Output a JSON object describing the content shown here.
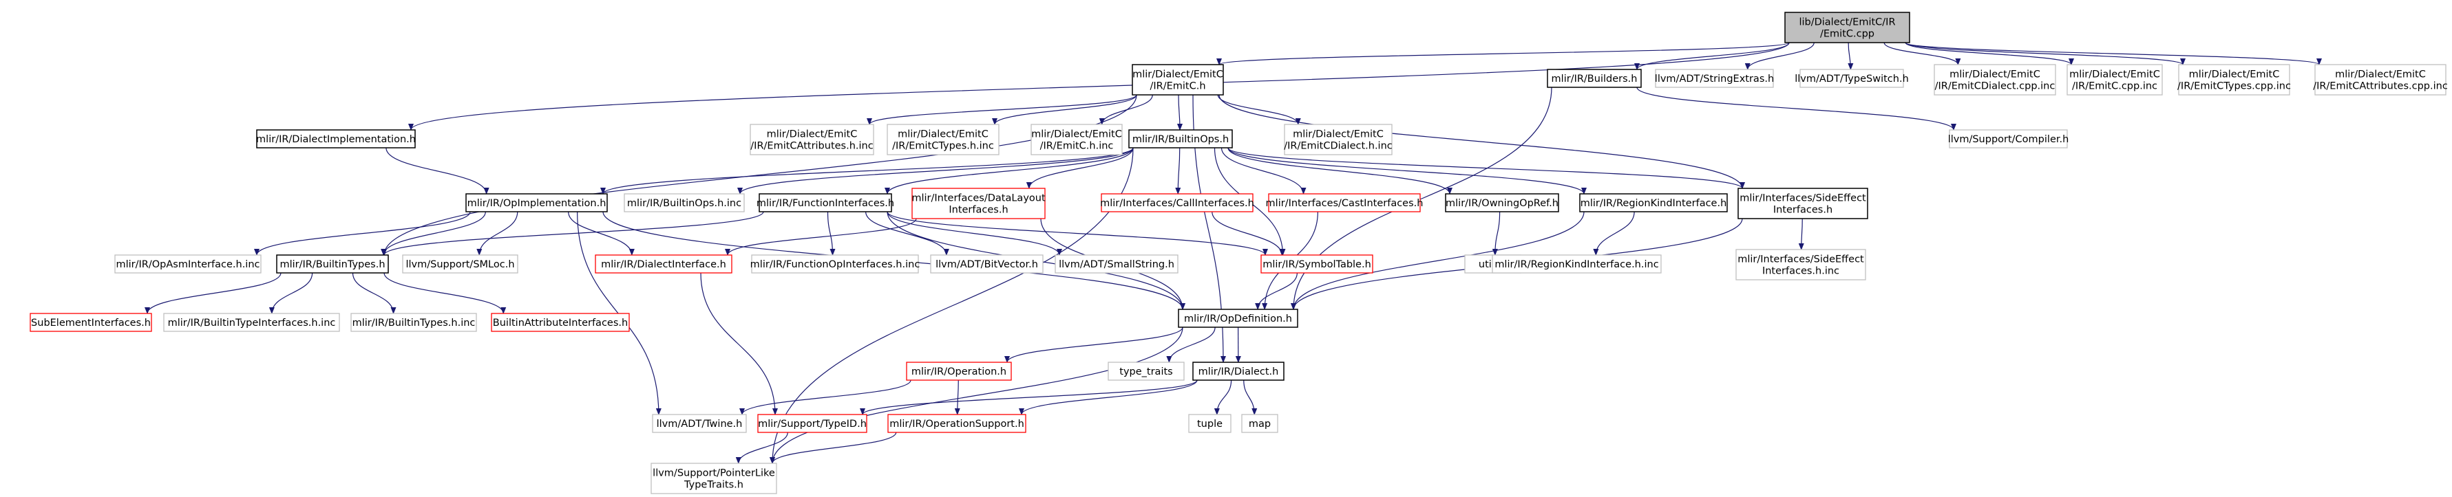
{
  "title": "lib/Dialect/EmitC/IR/EmitC.cpp",
  "colors": {
    "edge": "#191970",
    "root_fill": "#bfbfbf",
    "documented_border": "#000000",
    "undocumented_border": "#bfbfbf",
    "truncated_border": "#ff0000",
    "label_text": "#000000"
  },
  "nodes": [
    {
      "id": "root",
      "lines": [
        "lib/Dialect/EmitC/IR",
        "/EmitC.cpp"
      ],
      "style": "root"
    },
    {
      "id": "emitc_h",
      "lines": [
        "mlir/Dialect/EmitC",
        "/IR/EmitC.h"
      ],
      "style": "documented"
    },
    {
      "id": "builders_h",
      "lines": [
        "mlir/IR/Builders.h"
      ],
      "style": "documented"
    },
    {
      "id": "stringextras_h",
      "lines": [
        "llvm/ADT/StringExtras.h"
      ],
      "style": "undocumented"
    },
    {
      "id": "typeswitch_h",
      "lines": [
        "llvm/ADT/TypeSwitch.h"
      ],
      "style": "undocumented"
    },
    {
      "id": "emitc_dialect_cpp_inc",
      "lines": [
        "mlir/Dialect/EmitC",
        "/IR/EmitCDialect.cpp.inc"
      ],
      "style": "undocumented"
    },
    {
      "id": "emitc_cpp_inc",
      "lines": [
        "mlir/Dialect/EmitC",
        "/IR/EmitC.cpp.inc"
      ],
      "style": "undocumented"
    },
    {
      "id": "emitc_types_cpp_inc",
      "lines": [
        "mlir/Dialect/EmitC",
        "/IR/EmitCTypes.cpp.inc"
      ],
      "style": "undocumented"
    },
    {
      "id": "emitc_attrs_cpp_inc",
      "lines": [
        "mlir/Dialect/EmitC",
        "/IR/EmitCAttributes.cpp.inc"
      ],
      "style": "undocumented"
    },
    {
      "id": "dialect_impl_h",
      "lines": [
        "mlir/IR/DialectImplementation.h"
      ],
      "style": "documented"
    },
    {
      "id": "emitc_attrs_h_inc",
      "lines": [
        "mlir/Dialect/EmitC",
        "/IR/EmitCAttributes.h.inc"
      ],
      "style": "undocumented"
    },
    {
      "id": "emitc_types_h_inc",
      "lines": [
        "mlir/Dialect/EmitC",
        "/IR/EmitCTypes.h.inc"
      ],
      "style": "undocumented"
    },
    {
      "id": "emitc_h_inc",
      "lines": [
        "mlir/Dialect/EmitC",
        "/IR/EmitC.h.inc"
      ],
      "style": "undocumented"
    },
    {
      "id": "builtinops_h",
      "lines": [
        "mlir/IR/BuiltinOps.h"
      ],
      "style": "documented"
    },
    {
      "id": "emitc_dialect_h_inc",
      "lines": [
        "mlir/Dialect/EmitC",
        "/IR/EmitCDialect.h.inc"
      ],
      "style": "undocumented"
    },
    {
      "id": "compiler_h",
      "lines": [
        "llvm/Support/Compiler.h"
      ],
      "style": "undocumented"
    },
    {
      "id": "opimpl_h",
      "lines": [
        "mlir/IR/OpImplementation.h"
      ],
      "style": "documented"
    },
    {
      "id": "builtinops_h_inc",
      "lines": [
        "mlir/IR/BuiltinOps.h.inc"
      ],
      "style": "undocumented"
    },
    {
      "id": "funcinterfaces_h",
      "lines": [
        "mlir/IR/FunctionInterfaces.h"
      ],
      "style": "documented"
    },
    {
      "id": "datalayout_h",
      "lines": [
        "mlir/Interfaces/DataLayout",
        "Interfaces.h"
      ],
      "style": "truncated"
    },
    {
      "id": "callinterfaces_h",
      "lines": [
        "mlir/Interfaces/CallInterfaces.h"
      ],
      "style": "truncated"
    },
    {
      "id": "castinterfaces_h",
      "lines": [
        "mlir/Interfaces/CastInterfaces.h"
      ],
      "style": "truncated"
    },
    {
      "id": "owningopref_h",
      "lines": [
        "mlir/IR/OwningOpRef.h"
      ],
      "style": "documented"
    },
    {
      "id": "regionkind_h",
      "lines": [
        "mlir/IR/RegionKindInterface.h"
      ],
      "style": "documented"
    },
    {
      "id": "sideeffect_h",
      "lines": [
        "mlir/Interfaces/SideEffect",
        "Interfaces.h"
      ],
      "style": "documented"
    },
    {
      "id": "opasminterface_h_inc",
      "lines": [
        "mlir/IR/OpAsmInterface.h.inc"
      ],
      "style": "undocumented"
    },
    {
      "id": "builtintypes_h",
      "lines": [
        "mlir/IR/BuiltinTypes.h"
      ],
      "style": "documented"
    },
    {
      "id": "smloc_h",
      "lines": [
        "llvm/Support/SMLoc.h"
      ],
      "style": "undocumented"
    },
    {
      "id": "dialectinterface_h",
      "lines": [
        "mlir/IR/DialectInterface.h"
      ],
      "style": "truncated"
    },
    {
      "id": "funcopinterfaces_h_inc",
      "lines": [
        "mlir/IR/FunctionOpInterfaces.h.inc"
      ],
      "style": "undocumented"
    },
    {
      "id": "bitvector_h",
      "lines": [
        "llvm/ADT/BitVector.h"
      ],
      "style": "undocumented"
    },
    {
      "id": "smallstring_h",
      "lines": [
        "llvm/ADT/SmallString.h"
      ],
      "style": "undocumented"
    },
    {
      "id": "symboltable_h",
      "lines": [
        "mlir/IR/SymbolTable.h"
      ],
      "style": "truncated"
    },
    {
      "id": "utility",
      "lines": [
        "utility"
      ],
      "style": "undocumented"
    },
    {
      "id": "regionkind_h_inc",
      "lines": [
        "mlir/IR/RegionKindInterface.h.inc"
      ],
      "style": "undocumented"
    },
    {
      "id": "sideeffect_h_inc",
      "lines": [
        "mlir/Interfaces/SideEffect",
        "Interfaces.h.inc"
      ],
      "style": "undocumented"
    },
    {
      "id": "subelement_h",
      "lines": [
        "SubElementInterfaces.h"
      ],
      "style": "truncated"
    },
    {
      "id": "builtintypeinterfaces_h_inc",
      "lines": [
        "mlir/IR/BuiltinTypeInterfaces.h.inc"
      ],
      "style": "undocumented"
    },
    {
      "id": "builtintypes_h_inc",
      "lines": [
        "mlir/IR/BuiltinTypes.h.inc"
      ],
      "style": "undocumented"
    },
    {
      "id": "builtinattrinterfaces_h",
      "lines": [
        "BuiltinAttributeInterfaces.h"
      ],
      "style": "truncated"
    },
    {
      "id": "opdefinition_h",
      "lines": [
        "mlir/IR/OpDefinition.h"
      ],
      "style": "documented"
    },
    {
      "id": "type_traits",
      "lines": [
        "type_traits"
      ],
      "style": "undocumented"
    },
    {
      "id": "operation_h",
      "lines": [
        "mlir/IR/Operation.h"
      ],
      "style": "truncated"
    },
    {
      "id": "dialect_h",
      "lines": [
        "mlir/IR/Dialect.h"
      ],
      "style": "documented"
    },
    {
      "id": "twine_h",
      "lines": [
        "llvm/ADT/Twine.h"
      ],
      "style": "undocumented"
    },
    {
      "id": "typeid_h",
      "lines": [
        "mlir/Support/TypeID.h"
      ],
      "style": "truncated"
    },
    {
      "id": "opsupport_h",
      "lines": [
        "mlir/IR/OperationSupport.h"
      ],
      "style": "truncated"
    },
    {
      "id": "tuple",
      "lines": [
        "tuple"
      ],
      "style": "undocumented"
    },
    {
      "id": "map",
      "lines": [
        "map"
      ],
      "style": "undocumented"
    },
    {
      "id": "pointerlike_h",
      "lines": [
        "llvm/Support/PointerLike",
        "TypeTraits.h"
      ],
      "style": "undocumented"
    }
  ],
  "edges": [
    [
      "root",
      "emitc_h"
    ],
    [
      "root",
      "builders_h"
    ],
    [
      "root",
      "stringextras_h"
    ],
    [
      "root",
      "typeswitch_h"
    ],
    [
      "root",
      "emitc_dialect_cpp_inc"
    ],
    [
      "root",
      "emitc_cpp_inc"
    ],
    [
      "root",
      "emitc_types_cpp_inc"
    ],
    [
      "root",
      "emitc_attrs_cpp_inc"
    ],
    [
      "root",
      "dialect_impl_h"
    ],
    [
      "emitc_h",
      "emitc_attrs_h_inc"
    ],
    [
      "emitc_h",
      "emitc_types_h_inc"
    ],
    [
      "emitc_h",
      "emitc_h_inc"
    ],
    [
      "emitc_h",
      "builtinops_h"
    ],
    [
      "emitc_h",
      "emitc_dialect_h_inc"
    ],
    [
      "emitc_h",
      "builtintypes_h"
    ],
    [
      "emitc_h",
      "dialect_h"
    ],
    [
      "emitc_h",
      "sideeffect_h"
    ],
    [
      "builders_h",
      "compiler_h"
    ],
    [
      "builders_h",
      "opdefinition_h"
    ],
    [
      "dialect_impl_h",
      "opimpl_h"
    ],
    [
      "builtinops_h",
      "opimpl_h"
    ],
    [
      "builtinops_h",
      "builtinops_h_inc"
    ],
    [
      "builtinops_h",
      "funcinterfaces_h"
    ],
    [
      "builtinops_h",
      "datalayout_h"
    ],
    [
      "builtinops_h",
      "callinterfaces_h"
    ],
    [
      "builtinops_h",
      "castinterfaces_h"
    ],
    [
      "builtinops_h",
      "owningopref_h"
    ],
    [
      "builtinops_h",
      "regionkind_h"
    ],
    [
      "builtinops_h",
      "sideeffect_h"
    ],
    [
      "builtinops_h",
      "symboltable_h"
    ],
    [
      "builtinops_h",
      "pointerlike_h"
    ],
    [
      "opimpl_h",
      "opasminterface_h_inc"
    ],
    [
      "opimpl_h",
      "builtintypes_h"
    ],
    [
      "opimpl_h",
      "smloc_h"
    ],
    [
      "opimpl_h",
      "dialectinterface_h"
    ],
    [
      "opimpl_h",
      "opdefinition_h"
    ],
    [
      "opimpl_h",
      "twine_h"
    ],
    [
      "funcinterfaces_h",
      "builtintypes_h"
    ],
    [
      "funcinterfaces_h",
      "funcopinterfaces_h_inc"
    ],
    [
      "funcinterfaces_h",
      "bitvector_h"
    ],
    [
      "funcinterfaces_h",
      "smallstring_h"
    ],
    [
      "funcinterfaces_h",
      "opdefinition_h"
    ],
    [
      "funcinterfaces_h",
      "symboltable_h"
    ],
    [
      "datalayout_h",
      "dialectinterface_h"
    ],
    [
      "datalayout_h",
      "opdefinition_h"
    ],
    [
      "callinterfaces_h",
      "symboltable_h"
    ],
    [
      "castinterfaces_h",
      "opdefinition_h"
    ],
    [
      "owningopref_h",
      "utility"
    ],
    [
      "regionkind_h",
      "regionkind_h_inc"
    ],
    [
      "regionkind_h",
      "opdefinition_h"
    ],
    [
      "sideeffect_h",
      "sideeffect_h_inc"
    ],
    [
      "sideeffect_h",
      "opdefinition_h"
    ],
    [
      "builtintypes_h",
      "subelement_h"
    ],
    [
      "builtintypes_h",
      "builtintypeinterfaces_h_inc"
    ],
    [
      "builtintypes_h",
      "builtintypes_h_inc"
    ],
    [
      "builtintypes_h",
      "builtinattrinterfaces_h"
    ],
    [
      "dialectinterface_h",
      "typeid_h"
    ],
    [
      "symboltable_h",
      "opdefinition_h"
    ],
    [
      "opdefinition_h",
      "type_traits"
    ],
    [
      "opdefinition_h",
      "operation_h"
    ],
    [
      "opdefinition_h",
      "dialect_h"
    ],
    [
      "opdefinition_h",
      "pointerlike_h"
    ],
    [
      "operation_h",
      "twine_h"
    ],
    [
      "operation_h",
      "opsupport_h"
    ],
    [
      "dialect_h",
      "typeid_h"
    ],
    [
      "dialect_h",
      "opsupport_h"
    ],
    [
      "dialect_h",
      "tuple"
    ],
    [
      "dialect_h",
      "map"
    ],
    [
      "typeid_h",
      "pointerlike_h"
    ],
    [
      "opsupport_h",
      "pointerlike_h"
    ]
  ]
}
